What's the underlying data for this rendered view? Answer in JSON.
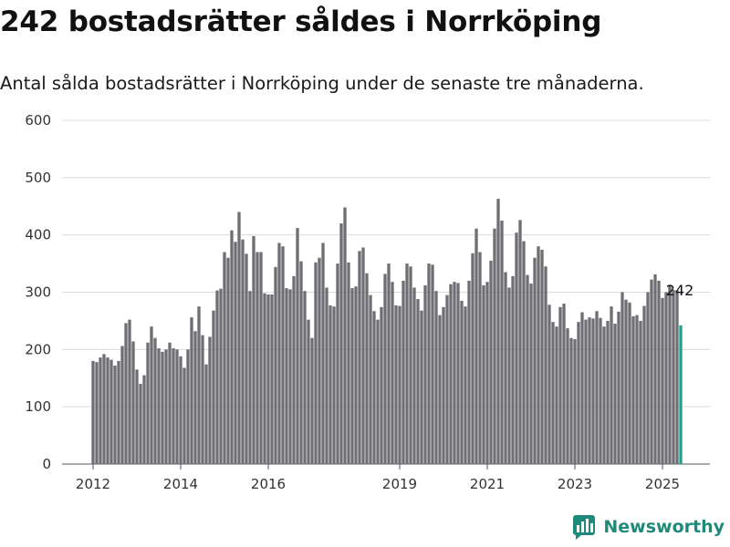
{
  "title": "242 bostadsrätter såldes i Norrköping",
  "subtitle": "Antal sålda bostadsrätter i Norrköping under de senaste tre månaderna.",
  "brand": "Newsworthy",
  "colors": {
    "bar": "#6e6e73",
    "highlight": "#20a08e",
    "grid": "#dcdcdc",
    "brand": "#1f8a7a"
  },
  "chart_data": {
    "type": "bar",
    "ylim": [
      0,
      600
    ],
    "yticks": [
      0,
      100,
      200,
      300,
      400,
      500,
      600
    ],
    "xticks": [
      {
        "label": "2012",
        "index": 0
      },
      {
        "label": "2014",
        "index": 24
      },
      {
        "label": "2016",
        "index": 48
      },
      {
        "label": "2019",
        "index": 84
      },
      {
        "label": "2021",
        "index": 108
      },
      {
        "label": "2023",
        "index": 132
      },
      {
        "label": "2025",
        "index": 156
      }
    ],
    "highlight_label": "242",
    "grid": true,
    "values": [
      180,
      178,
      186,
      192,
      186,
      182,
      172,
      180,
      206,
      246,
      252,
      214,
      165,
      140,
      155,
      212,
      240,
      220,
      202,
      196,
      200,
      212,
      202,
      200,
      188,
      168,
      200,
      256,
      232,
      275,
      225,
      174,
      222,
      268,
      303,
      306,
      370,
      360,
      408,
      388,
      440,
      392,
      367,
      302,
      398,
      370,
      370,
      298,
      296,
      296,
      344,
      386,
      380,
      307,
      305,
      328,
      412,
      354,
      302,
      252,
      220,
      352,
      360,
      386,
      308,
      277,
      275,
      350,
      420,
      448,
      352,
      307,
      310,
      372,
      378,
      333,
      295,
      267,
      252,
      274,
      332,
      350,
      318,
      277,
      276,
      320,
      350,
      345,
      308,
      288,
      268,
      312,
      350,
      348,
      302,
      260,
      274,
      295,
      314,
      318,
      316,
      285,
      275,
      320,
      368,
      411,
      370,
      312,
      318,
      355,
      411,
      463,
      425,
      335,
      308,
      328,
      404,
      426,
      389,
      330,
      315,
      360,
      380,
      374,
      345,
      278,
      248,
      240,
      274,
      280,
      237,
      220,
      218,
      248,
      265,
      252,
      256,
      254,
      267,
      255,
      240,
      250,
      275,
      245,
      266,
      300,
      287,
      282,
      258,
      260,
      250,
      276,
      300,
      322,
      331,
      320,
      290,
      300,
      313,
      304,
      303,
      242
    ]
  }
}
